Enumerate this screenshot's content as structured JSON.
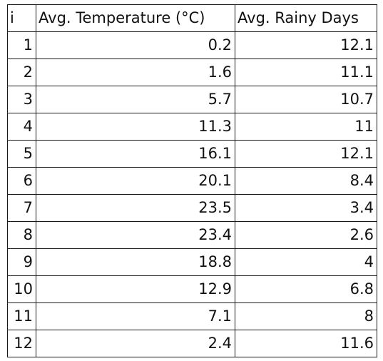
{
  "table": {
    "headers": [
      "i",
      "Avg. Temperature (°C)",
      "Avg. Rainy Days"
    ],
    "rows": [
      [
        "1",
        "0.2",
        "12.1"
      ],
      [
        "2",
        "1.6",
        "11.1"
      ],
      [
        "3",
        "5.7",
        "10.7"
      ],
      [
        "4",
        "11.3",
        "11"
      ],
      [
        "5",
        "16.1",
        "12.1"
      ],
      [
        "6",
        "20.1",
        "8.4"
      ],
      [
        "7",
        "23.5",
        "3.4"
      ],
      [
        "8",
        "23.4",
        "2.6"
      ],
      [
        "9",
        "18.8",
        "4"
      ],
      [
        "10",
        "12.9",
        "6.8"
      ],
      [
        "11",
        "7.1",
        "8"
      ],
      [
        "12",
        "2.4",
        "11.6"
      ]
    ]
  }
}
